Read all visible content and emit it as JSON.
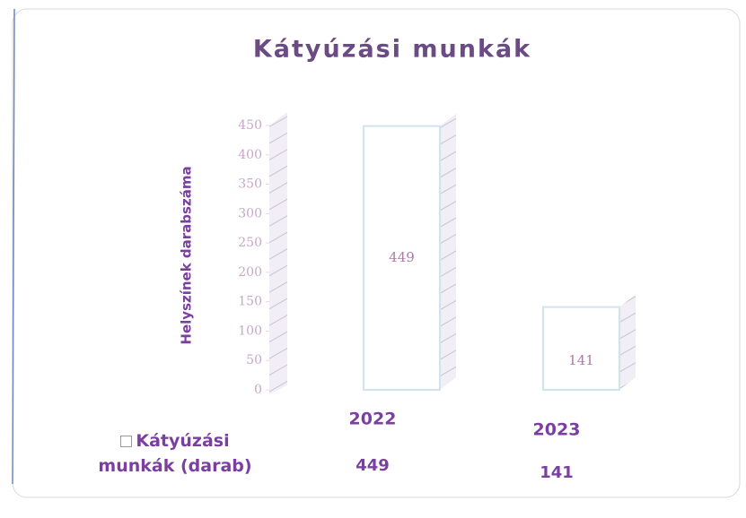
{
  "chart_data": {
    "type": "bar",
    "title": "Kátyúzási munkák",
    "y_label": "Helyszínek darabszáma",
    "categories": [
      "2022",
      "2023"
    ],
    "series": [
      {
        "name": "Kátyúzási munkák (darab)",
        "color": "#ffffff",
        "values": [
          449,
          141
        ]
      }
    ],
    "ylim": [
      0,
      450
    ],
    "yticks": [
      0,
      50,
      100,
      150,
      200,
      250,
      300,
      350,
      400,
      450
    ],
    "data_table": true
  }
}
